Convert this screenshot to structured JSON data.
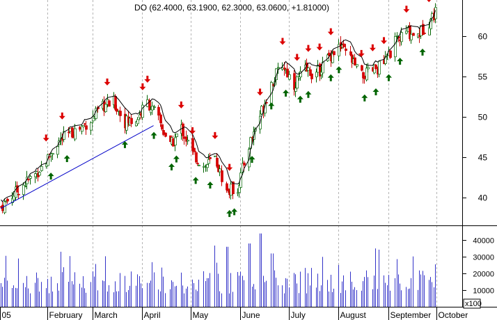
{
  "chart_data": {
    "type": "candlestick",
    "title": "DO (62.4000, 63.1900, 62.3000, 63.0600, +1.81000)",
    "price_axis": {
      "ylim": [
        36.5,
        64.5
      ],
      "ticks": [
        "40",
        "45",
        "50",
        "55",
        "60"
      ]
    },
    "volume_axis": {
      "ylim": [
        0,
        48000
      ],
      "ticks": [
        "10000",
        "20000",
        "30000",
        "40000"
      ],
      "multiplier_label": "x100"
    },
    "month_labels": [
      "05",
      "February",
      "March",
      "April",
      "May",
      "June",
      "July",
      "August",
      "September",
      "October"
    ],
    "close_path": [
      [
        "Jan 03",
        38.8
      ],
      [
        "Jan 10",
        40.2
      ],
      [
        "Jan 17",
        41.6
      ],
      [
        "Jan 24",
        42.8
      ],
      [
        "Jan 31",
        44.5
      ],
      [
        "Feb 07",
        46.8
      ],
      [
        "Feb 14",
        47.8
      ],
      [
        "Feb 21",
        48.6
      ],
      [
        "Feb 28",
        49.6
      ],
      [
        "Mar 07",
        51.2
      ],
      [
        "Mar 14",
        51.8
      ],
      [
        "Mar 21",
        49.4
      ],
      [
        "Mar 28",
        49.6
      ],
      [
        "Apr 04",
        51.8
      ],
      [
        "Apr 11",
        49.6
      ],
      [
        "Apr 18",
        46.3
      ],
      [
        "Apr 25",
        48.6
      ],
      [
        "May 02",
        45.4
      ],
      [
        "May 09",
        43.8
      ],
      [
        "May 16",
        44.8
      ],
      [
        "May 23",
        40.7
      ],
      [
        "May 30",
        41.2
      ],
      [
        "Jun 06",
        46.5
      ],
      [
        "Jun 13",
        50.2
      ],
      [
        "Jun 20",
        54.2
      ],
      [
        "Jun 27",
        56.5
      ],
      [
        "Jul 04",
        54.0
      ],
      [
        "Jul 11",
        55.8
      ],
      [
        "Jul 18",
        55.2
      ],
      [
        "Jul 25",
        57.3
      ],
      [
        "Aug 01",
        58.7
      ],
      [
        "Aug 08",
        57.2
      ],
      [
        "Aug 15",
        55.0
      ],
      [
        "Aug 22",
        55.7
      ],
      [
        "Aug 29",
        56.6
      ],
      [
        "Sep 05",
        59.2
      ],
      [
        "Sep 12",
        60.5
      ],
      [
        "Sep 19",
        60.2
      ],
      [
        "Sep 26",
        61.8
      ],
      [
        "Sep 30",
        63.06
      ]
    ],
    "down_arrows": [
      "Jan 31",
      "Feb 10",
      "Mar 10",
      "Apr 01",
      "Apr 04",
      "Apr 25",
      "May 02",
      "May 16",
      "May 25",
      "Jun 13",
      "Jun 27",
      "Jul 06",
      "Jul 13",
      "Jul 20",
      "Jul 27",
      "Aug 15",
      "Aug 22",
      "Aug 29",
      "Sep 12",
      "Sep 26"
    ],
    "up_arrows": [
      "Feb 03",
      "Feb 13",
      "Mar 21",
      "Apr 08",
      "Apr 19",
      "Apr 22",
      "May 04",
      "May 13",
      "May 25",
      "May 28",
      "Jun 08",
      "Jun 20",
      "Jun 29",
      "Jul 08",
      "Jul 13",
      "Jul 27",
      "Aug 01",
      "Aug 17",
      "Aug 24",
      "Sep 01",
      "Sep 08",
      "Sep 22"
    ],
    "trendline": [
      [
        "Jan 03",
        38.6
      ],
      [
        "Apr 08",
        48.9
      ]
    ],
    "grid": "vertical dashed at month starts"
  }
}
